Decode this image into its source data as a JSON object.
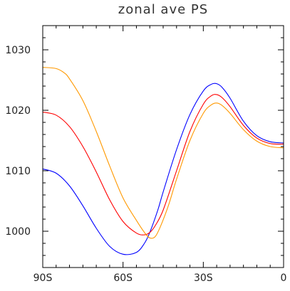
{
  "chart_data": {
    "type": "line",
    "title": "zonal ave PS",
    "xlabel": "",
    "ylabel": "",
    "xlim": [
      -90,
      0
    ],
    "ylim": [
      994,
      1034
    ],
    "x_ticks": [
      {
        "value": -90,
        "label": "90S"
      },
      {
        "value": -60,
        "label": "60S"
      },
      {
        "value": -30,
        "label": "30S"
      },
      {
        "value": 0,
        "label": "0"
      }
    ],
    "y_ticks": [
      {
        "value": 1000,
        "label": "1000"
      },
      {
        "value": 1010,
        "label": "1010"
      },
      {
        "value": 1020,
        "label": "1020"
      },
      {
        "value": 1030,
        "label": "1030"
      }
    ],
    "grid": false,
    "series": [
      {
        "color": "#0000ff",
        "x": [
          -90,
          -85,
          -80,
          -75,
          -70,
          -65,
          -60,
          -55,
          -52,
          -50,
          -47,
          -45,
          -40,
          -35,
          -30,
          -27,
          -25,
          -23,
          -20,
          -15,
          -10,
          -5,
          0
        ],
        "y": [
          1010.3,
          1009.6,
          1007.5,
          1004.2,
          1000.5,
          997.5,
          996.2,
          996.5,
          998.0,
          999.8,
          1003.5,
          1006.5,
          1013.5,
          1019.3,
          1023.2,
          1024.3,
          1024.4,
          1023.8,
          1022.0,
          1018.2,
          1015.8,
          1014.8,
          1014.6
        ]
      },
      {
        "color": "#ff0000",
        "x": [
          -90,
          -85,
          -80,
          -75,
          -70,
          -65,
          -60,
          -55,
          -52,
          -50,
          -48,
          -45,
          -40,
          -35,
          -30,
          -27,
          -25,
          -23,
          -20,
          -15,
          -10,
          -5,
          0
        ],
        "y": [
          1019.7,
          1019.2,
          1017.3,
          1014.0,
          1009.8,
          1005.2,
          1001.6,
          999.7,
          999.4,
          999.8,
          1000.9,
          1003.5,
          1010.0,
          1016.5,
          1021.0,
          1022.4,
          1022.6,
          1022.1,
          1020.6,
          1017.5,
          1015.4,
          1014.5,
          1014.4
        ]
      },
      {
        "color": "#ff9900",
        "x": [
          -90,
          -85,
          -82,
          -80,
          -75,
          -70,
          -65,
          -60,
          -55,
          -52,
          -50,
          -48,
          -46,
          -43,
          -40,
          -35,
          -30,
          -27,
          -25,
          -23,
          -20,
          -15,
          -10,
          -5,
          0
        ],
        "y": [
          1027.1,
          1026.9,
          1026.2,
          1025.2,
          1021.6,
          1016.5,
          1010.8,
          1005.5,
          1001.8,
          999.8,
          998.9,
          999.1,
          1000.8,
          1004.3,
          1008.6,
          1015.0,
          1019.5,
          1020.9,
          1021.2,
          1020.8,
          1019.5,
          1016.8,
          1014.9,
          1014.0,
          1013.8
        ]
      }
    ]
  }
}
